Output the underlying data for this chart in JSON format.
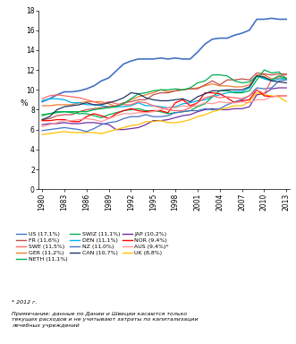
{
  "years": [
    1980,
    1981,
    1982,
    1983,
    1984,
    1985,
    1986,
    1987,
    1988,
    1989,
    1990,
    1991,
    1992,
    1993,
    1994,
    1995,
    1996,
    1997,
    1998,
    1999,
    2000,
    2001,
    2002,
    2003,
    2004,
    2005,
    2006,
    2007,
    2008,
    2009,
    2010,
    2011,
    2012,
    2013
  ],
  "series": [
    {
      "name": "US",
      "color": "#4472C4",
      "lw": 1.2,
      "data": [
        8.8,
        9.1,
        9.5,
        9.8,
        9.8,
        9.9,
        10.1,
        10.4,
        10.9,
        11.2,
        11.9,
        12.6,
        12.9,
        13.1,
        13.1,
        13.1,
        13.2,
        13.1,
        13.2,
        13.1,
        13.1,
        13.8,
        14.6,
        15.1,
        15.2,
        15.2,
        15.5,
        15.7,
        16.0,
        17.1,
        17.1,
        17.2,
        17.1,
        17.1
      ]
    },
    {
      "name": "GER",
      "color": "#ED7D31",
      "lw": 0.9,
      "data": [
        8.4,
        8.4,
        8.5,
        8.5,
        8.5,
        8.7,
        8.8,
        8.8,
        8.8,
        8.6,
        8.3,
        8.6,
        9.0,
        9.3,
        9.5,
        9.7,
        10.0,
        9.8,
        9.9,
        10.0,
        10.1,
        10.2,
        10.4,
        10.6,
        10.4,
        10.4,
        10.3,
        10.3,
        10.5,
        11.5,
        11.5,
        11.1,
        11.2,
        11.2
      ]
    },
    {
      "name": "DEN",
      "color": "#00B0F0",
      "lw": 0.9,
      "data": [
        8.9,
        9.1,
        9.1,
        9.0,
        8.7,
        8.7,
        8.5,
        8.5,
        8.4,
        8.3,
        8.3,
        8.3,
        8.4,
        8.7,
        8.4,
        8.4,
        8.3,
        8.2,
        8.3,
        8.6,
        8.7,
        8.9,
        9.0,
        9.3,
        9.5,
        9.7,
        9.8,
        9.8,
        10.2,
        11.4,
        11.1,
        10.9,
        11.1,
        11.1
      ]
    },
    {
      "name": "JAP",
      "color": "#7030A0",
      "lw": 0.9,
      "data": [
        6.5,
        6.6,
        6.6,
        6.7,
        6.6,
        6.6,
        6.7,
        6.7,
        6.6,
        6.5,
        6.0,
        6.0,
        6.1,
        6.2,
        6.5,
        6.9,
        6.9,
        7.0,
        7.2,
        7.4,
        7.5,
        7.8,
        8.0,
        8.1,
        8.0,
        8.0,
        8.1,
        8.1,
        8.3,
        9.5,
        9.6,
        10.1,
        10.2,
        10.2
      ]
    },
    {
      "name": "UK",
      "color": "#FFC000",
      "lw": 0.9,
      "data": [
        5.5,
        5.6,
        5.7,
        5.8,
        5.7,
        5.7,
        5.7,
        5.7,
        5.6,
        5.8,
        6.0,
        6.2,
        6.4,
        6.5,
        6.8,
        6.8,
        6.9,
        6.7,
        6.7,
        6.8,
        7.0,
        7.3,
        7.5,
        7.8,
        8.0,
        8.2,
        8.4,
        8.4,
        8.8,
        9.7,
        9.5,
        9.4,
        9.3,
        8.8
      ]
    },
    {
      "name": "FR",
      "color": "#C0504D",
      "lw": 0.9,
      "data": [
        7.0,
        7.1,
        7.4,
        7.5,
        7.5,
        7.8,
        8.0,
        8.1,
        8.2,
        8.3,
        8.4,
        8.7,
        8.8,
        9.0,
        9.0,
        9.5,
        9.7,
        9.7,
        9.9,
        10.0,
        10.1,
        10.1,
        10.5,
        10.9,
        10.5,
        11.0,
        11.0,
        11.1,
        11.0,
        11.7,
        11.6,
        11.5,
        11.6,
        11.6
      ]
    },
    {
      "name": "NETH",
      "color": "#00B050",
      "lw": 0.9,
      "data": [
        7.5,
        7.6,
        7.7,
        7.8,
        7.7,
        7.6,
        7.6,
        7.4,
        7.2,
        7.5,
        7.7,
        7.9,
        8.0,
        8.1,
        7.9,
        7.9,
        7.8,
        7.6,
        7.7,
        7.8,
        7.9,
        8.3,
        8.6,
        9.3,
        9.9,
        9.9,
        9.7,
        9.7,
        9.9,
        11.0,
        12.0,
        11.7,
        11.8,
        11.1
      ]
    },
    {
      "name": "NZ",
      "color": "#4472C4",
      "lw": 0.9,
      "data": [
        5.9,
        6.0,
        6.1,
        6.2,
        6.1,
        6.0,
        5.8,
        6.1,
        6.5,
        6.7,
        6.8,
        7.1,
        7.3,
        7.3,
        7.5,
        7.3,
        7.3,
        7.4,
        7.7,
        7.8,
        7.9,
        7.9,
        8.1,
        8.0,
        8.1,
        8.5,
        8.8,
        9.0,
        9.4,
        10.2,
        10.1,
        10.2,
        10.9,
        11.0
      ]
    },
    {
      "name": "NOR",
      "color": "#FF0000",
      "lw": 0.9,
      "data": [
        6.9,
        6.9,
        7.0,
        7.0,
        6.8,
        6.8,
        7.3,
        7.6,
        7.4,
        7.1,
        7.6,
        7.9,
        8.1,
        7.9,
        7.8,
        7.9,
        7.9,
        7.7,
        8.7,
        9.0,
        8.4,
        8.7,
        9.7,
        9.7,
        9.6,
        9.2,
        8.7,
        8.9,
        9.0,
        10.0,
        9.4,
        9.3,
        9.4,
        9.4
      ]
    },
    {
      "name": "AUS",
      "color": "#FF9999",
      "lw": 0.9,
      "data": [
        6.3,
        6.5,
        6.7,
        6.9,
        6.9,
        7.0,
        7.1,
        7.0,
        6.8,
        7.1,
        7.4,
        7.6,
        7.6,
        7.7,
        7.7,
        7.8,
        8.0,
        8.2,
        8.2,
        8.4,
        8.3,
        8.4,
        8.7,
        8.6,
        8.8,
        8.7,
        8.7,
        8.8,
        8.7,
        9.0,
        9.0,
        9.3,
        9.4,
        9.4
      ]
    },
    {
      "name": "SWE",
      "color": "#FF6666",
      "lw": 0.9,
      "data": [
        9.1,
        9.4,
        9.5,
        9.4,
        9.3,
        9.2,
        9.0,
        8.8,
        8.6,
        8.8,
        8.6,
        8.5,
        8.5,
        8.8,
        8.7,
        8.4,
        8.2,
        8.0,
        7.9,
        7.9,
        8.2,
        8.7,
        9.2,
        9.4,
        9.2,
        9.3,
        9.2,
        9.1,
        9.4,
        10.0,
        9.6,
        11.0,
        11.4,
        11.5
      ]
    },
    {
      "name": "SWIZ",
      "color": "#00B050",
      "lw": 0.9,
      "data": [
        7.4,
        7.6,
        7.8,
        7.8,
        7.8,
        7.8,
        7.8,
        8.0,
        8.1,
        8.2,
        8.3,
        8.6,
        9.1,
        9.6,
        9.7,
        9.9,
        10.0,
        10.0,
        10.1,
        10.0,
        10.2,
        10.7,
        10.9,
        11.5,
        11.5,
        11.4,
        10.9,
        10.7,
        10.8,
        11.4,
        11.2,
        11.0,
        11.4,
        11.1
      ]
    },
    {
      "name": "CAN",
      "color": "#1F3864",
      "lw": 0.9,
      "data": [
        7.0,
        7.3,
        8.0,
        8.3,
        8.4,
        8.5,
        8.7,
        8.5,
        8.5,
        8.7,
        8.9,
        9.2,
        9.7,
        9.6,
        9.2,
        9.0,
        8.9,
        8.9,
        9.0,
        9.1,
        8.8,
        9.3,
        9.6,
        9.9,
        9.9,
        10.0,
        10.0,
        10.0,
        10.3,
        11.4,
        11.3,
        10.9,
        10.8,
        10.7
      ]
    }
  ],
  "legend_entries": [
    [
      "US (17,1%)",
      "#4472C4"
    ],
    [
      "FR (11,6%)",
      "#C0504D"
    ],
    [
      "SWE (11,5%)",
      "#FF6666"
    ],
    [
      "GER (11,2%)",
      "#ED7D31"
    ],
    [
      "NETH (11,1%)",
      "#00B050"
    ],
    [
      "SWIZ (11,1%)",
      "#00B050"
    ],
    [
      "DEN (11,1%)",
      "#00B0F0"
    ],
    [
      "NZ (11,0%)",
      "#4472C4"
    ],
    [
      "CAN (10,7%)",
      "#1F3864"
    ],
    [
      "JAP (10,2%)",
      "#7030A0"
    ],
    [
      "NOR (9,4%)",
      "#FF0000"
    ],
    [
      "AUS (9,4%)*",
      "#FF9999"
    ],
    [
      "UK (8,8%)",
      "#FFC000"
    ]
  ],
  "ylabel": "%",
  "ylim": [
    0,
    18
  ],
  "yticks": [
    0,
    2,
    4,
    6,
    8,
    10,
    12,
    14,
    16,
    18
  ],
  "xticks": [
    1980,
    1983,
    1986,
    1989,
    1992,
    1995,
    1998,
    2001,
    2004,
    2007,
    2010,
    2013
  ],
  "footnote1": "* 2012 г.",
  "footnote2": "Примечание: данные по Дании и Швеции касаются только\nтекущих расходов и не учитывают затраты по капитализации\nлечебных учреждений"
}
